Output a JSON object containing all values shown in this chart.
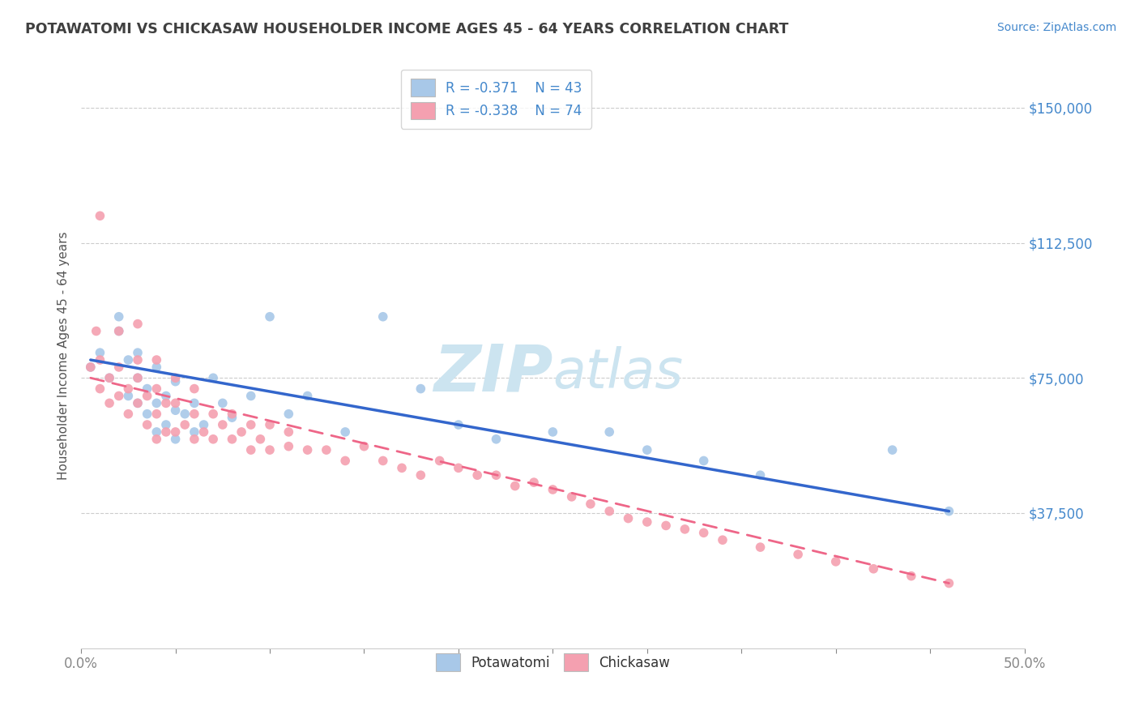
{
  "title": "POTAWATOMI VS CHICKASAW HOUSEHOLDER INCOME AGES 45 - 64 YEARS CORRELATION CHART",
  "source": "Source: ZipAtlas.com",
  "ylabel": "Householder Income Ages 45 - 64 years",
  "xlim": [
    0.0,
    0.5
  ],
  "ylim": [
    0,
    162500
  ],
  "yticks": [
    37500,
    75000,
    112500,
    150000
  ],
  "ytick_labels": [
    "$37,500",
    "$75,000",
    "$112,500",
    "$150,000"
  ],
  "xticks": [
    0.0,
    0.05,
    0.1,
    0.15,
    0.2,
    0.25,
    0.3,
    0.35,
    0.4,
    0.45,
    0.5
  ],
  "xtick_labels": [
    "0.0%",
    "",
    "",
    "",
    "",
    "",
    "",
    "",
    "",
    "",
    "50.0%"
  ],
  "legend_r1": "R = -0.371",
  "legend_n1": "N = 43",
  "legend_r2": "R = -0.338",
  "legend_n2": "N = 74",
  "color_pota": "#a8c8e8",
  "color_chick": "#f4a0b0",
  "line_color_pota": "#3366cc",
  "line_color_chick": "#ee6688",
  "watermark_color": "#cce4f0",
  "title_color": "#404040",
  "axis_color": "#4488cc",
  "pota_x": [
    0.005,
    0.01,
    0.015,
    0.02,
    0.02,
    0.025,
    0.025,
    0.03,
    0.03,
    0.03,
    0.035,
    0.035,
    0.04,
    0.04,
    0.04,
    0.045,
    0.045,
    0.05,
    0.05,
    0.05,
    0.055,
    0.06,
    0.06,
    0.065,
    0.07,
    0.075,
    0.08,
    0.09,
    0.1,
    0.11,
    0.12,
    0.14,
    0.16,
    0.18,
    0.2,
    0.22,
    0.25,
    0.28,
    0.3,
    0.33,
    0.36,
    0.43,
    0.46
  ],
  "pota_y": [
    78000,
    82000,
    75000,
    88000,
    92000,
    70000,
    80000,
    68000,
    75000,
    82000,
    65000,
    72000,
    60000,
    68000,
    78000,
    62000,
    70000,
    58000,
    66000,
    74000,
    65000,
    60000,
    68000,
    62000,
    75000,
    68000,
    64000,
    70000,
    92000,
    65000,
    70000,
    60000,
    92000,
    72000,
    62000,
    58000,
    60000,
    60000,
    55000,
    52000,
    48000,
    55000,
    38000
  ],
  "chick_x": [
    0.005,
    0.008,
    0.01,
    0.01,
    0.01,
    0.015,
    0.015,
    0.02,
    0.02,
    0.02,
    0.025,
    0.025,
    0.03,
    0.03,
    0.03,
    0.03,
    0.035,
    0.035,
    0.04,
    0.04,
    0.04,
    0.04,
    0.045,
    0.045,
    0.05,
    0.05,
    0.05,
    0.055,
    0.06,
    0.06,
    0.06,
    0.065,
    0.07,
    0.07,
    0.075,
    0.08,
    0.08,
    0.085,
    0.09,
    0.09,
    0.095,
    0.1,
    0.1,
    0.11,
    0.11,
    0.12,
    0.13,
    0.14,
    0.15,
    0.16,
    0.17,
    0.18,
    0.19,
    0.2,
    0.21,
    0.22,
    0.23,
    0.24,
    0.25,
    0.26,
    0.27,
    0.28,
    0.29,
    0.3,
    0.31,
    0.32,
    0.33,
    0.34,
    0.36,
    0.38,
    0.4,
    0.42,
    0.44,
    0.46
  ],
  "chick_y": [
    78000,
    88000,
    72000,
    80000,
    120000,
    68000,
    75000,
    70000,
    78000,
    88000,
    65000,
    72000,
    68000,
    75000,
    80000,
    90000,
    62000,
    70000,
    58000,
    65000,
    72000,
    80000,
    60000,
    68000,
    60000,
    68000,
    75000,
    62000,
    58000,
    65000,
    72000,
    60000,
    58000,
    65000,
    62000,
    58000,
    65000,
    60000,
    55000,
    62000,
    58000,
    55000,
    62000,
    56000,
    60000,
    55000,
    55000,
    52000,
    56000,
    52000,
    50000,
    48000,
    52000,
    50000,
    48000,
    48000,
    45000,
    46000,
    44000,
    42000,
    40000,
    38000,
    36000,
    35000,
    34000,
    33000,
    32000,
    30000,
    28000,
    26000,
    24000,
    22000,
    20000,
    18000
  ],
  "pota_line_x": [
    0.005,
    0.46
  ],
  "pota_line_y": [
    80000,
    38000
  ],
  "chick_line_x": [
    0.005,
    0.46
  ],
  "chick_line_y": [
    75000,
    18000
  ]
}
